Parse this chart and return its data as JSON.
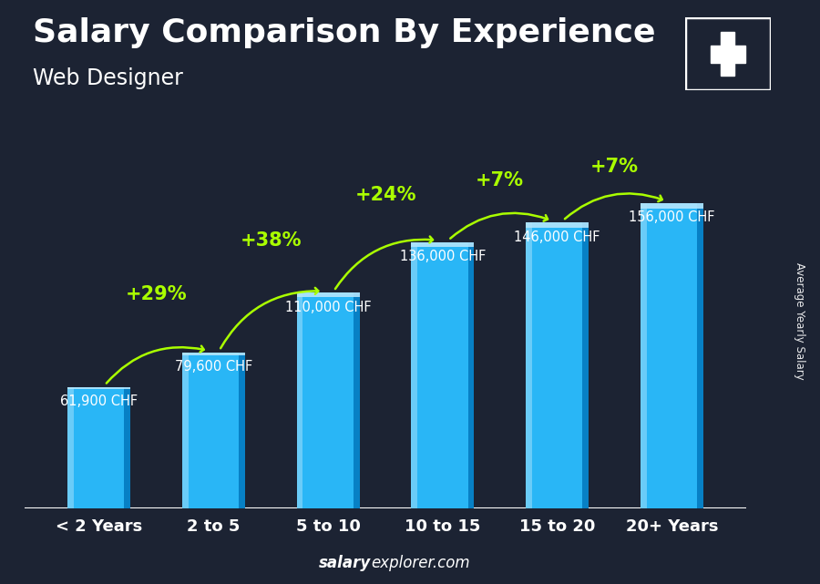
{
  "title": "Salary Comparison By Experience",
  "subtitle": "Web Designer",
  "categories": [
    "< 2 Years",
    "2 to 5",
    "5 to 10",
    "10 to 15",
    "15 to 20",
    "20+ Years"
  ],
  "values": [
    61900,
    79600,
    110000,
    136000,
    146000,
    156000
  ],
  "value_labels": [
    "61,900 CHF",
    "79,600 CHF",
    "110,000 CHF",
    "136,000 CHF",
    "146,000 CHF",
    "156,000 CHF"
  ],
  "pct_labels": [
    null,
    "+29%",
    "+38%",
    "+24%",
    "+7%",
    "+7%"
  ],
  "bar_face_color": "#29b6f6",
  "bar_left_color": "#81d4fa",
  "bar_right_color": "#0277bd",
  "bar_top_color": "#b3e5fc",
  "bg_color": "#1c2333",
  "text_color": "#ffffff",
  "green_color": "#aaff00",
  "ylabel": "Average Yearly Salary",
  "footer_bold": "salary",
  "footer_normal": "explorer.com",
  "ylim_max": 185000,
  "bar_width": 0.55,
  "title_fontsize": 26,
  "subtitle_fontsize": 17,
  "value_fontsize": 10.5,
  "pct_fontsize": 15,
  "cat_fontsize": 13,
  "flag_red": "#cc0000",
  "flag_white": "#ffffff"
}
